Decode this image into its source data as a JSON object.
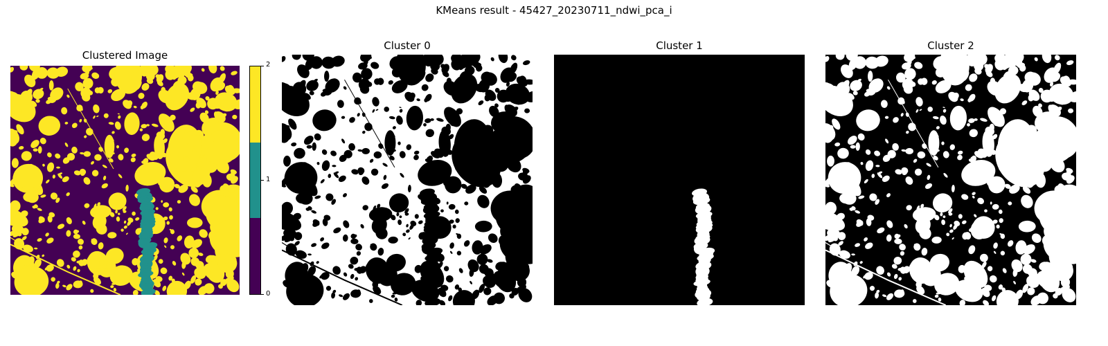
{
  "figure": {
    "suptitle": "KMeans result - 45427_20230711_ndwi_pca_i"
  },
  "panels": [
    {
      "title": "Clustered Image"
    },
    {
      "title": "Cluster 0"
    },
    {
      "title": "Cluster 1"
    },
    {
      "title": "Cluster 2"
    }
  ],
  "colorbar": {
    "ticks": [
      "0",
      "1",
      "2"
    ],
    "colors": [
      "#440154",
      "#21918c",
      "#fde725"
    ]
  },
  "colors": {
    "cluster0": "#440154",
    "cluster1": "#21918c",
    "cluster2": "#fde725",
    "mask_on": "#ffffff",
    "mask_off": "#000000"
  }
}
